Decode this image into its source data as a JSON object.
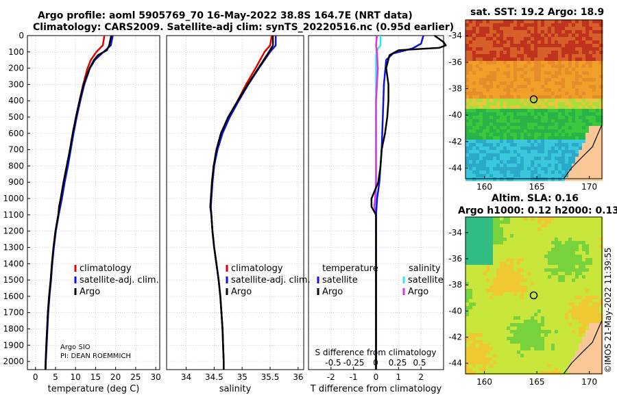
{
  "title": {
    "line1": "Argo profile: aoml 5905769_70 16-May-2022 38.8S 164.7E (NRT data)",
    "line2": "Climatology: CARS2009. Satellite-adj clim: synTS_20220516.nc (0.95d earlier)"
  },
  "map_sst": {
    "title": "sat. SST: 19.2 Argo: 18.9",
    "xticks": [
      "160",
      "165",
      "170"
    ],
    "yticks": [
      "-34",
      "-36",
      "-38",
      "-40",
      "-42",
      "-44"
    ],
    "marker": {
      "lon": 164.7,
      "lat": -38.8
    }
  },
  "map_sla": {
    "title_line1": "Altim. SLA: 0.16",
    "title_line2": "Argo h1000: 0.12 h2000: 0.13",
    "xticks": [
      "160",
      "165",
      "170"
    ],
    "yticks": [
      "-34",
      "-36",
      "-38",
      "-40",
      "-42",
      "-44"
    ],
    "marker": {
      "lon": 164.7,
      "lat": -38.8
    }
  },
  "credit": "©IMOS 21-May-2022 11:39:55",
  "argo_note": {
    "line1": "Argo SIO",
    "line2": "PI: DEAN ROEMMICH"
  },
  "colors": {
    "climatology": "#e00000",
    "satellite": "#1010e0",
    "argo": "#000000",
    "sal_satellite": "#30e8e8",
    "sal_argo": "#e030e0"
  },
  "chart_data": [
    {
      "type": "line",
      "xlabel": "temperature (deg C)",
      "ylabel": "",
      "xlim": [
        -2,
        31
      ],
      "ylim": [
        2050,
        0
      ],
      "xticks": [
        "0",
        "5",
        "10",
        "15",
        "20",
        "25",
        "30"
      ],
      "yticks": [
        "0",
        "100",
        "200",
        "300",
        "400",
        "500",
        "600",
        "700",
        "800",
        "900",
        "1000",
        "1100",
        "1200",
        "1300",
        "1400",
        "1500",
        "1600",
        "1700",
        "1800",
        "1900",
        "2000"
      ],
      "legend": [
        "climatology",
        "satellite-adj. clim.",
        "Argo"
      ],
      "series": [
        {
          "name": "climatology",
          "depth": [
            0,
            60,
            100,
            150,
            200,
            300,
            400,
            500,
            600,
            700,
            800,
            900,
            1000,
            1100,
            1200,
            1300,
            1400,
            1500,
            1600,
            1700,
            1800,
            1900,
            2000,
            2050
          ],
          "values": [
            17.2,
            16.8,
            15.2,
            13.8,
            13.0,
            11.9,
            11.0,
            10.1,
            9.3,
            8.6,
            7.9,
            7.2,
            6.5,
            5.7,
            5.0,
            4.5,
            4.1,
            3.8,
            3.4,
            3.1,
            2.9,
            2.7,
            2.55,
            2.5
          ]
        },
        {
          "name": "satellite-adj. clim.",
          "depth": [
            0,
            60,
            100,
            150,
            200,
            300,
            400,
            500,
            600,
            700,
            800,
            900,
            1000,
            1100,
            1200,
            1300,
            1400,
            1500,
            1600,
            1700,
            1800,
            1900,
            2000,
            2050
          ],
          "values": [
            19.3,
            18.8,
            17.0,
            14.8,
            13.6,
            12.2,
            11.2,
            10.3,
            9.5,
            8.8,
            8.1,
            7.3,
            6.6,
            5.8,
            5.1,
            4.6,
            4.2,
            3.9,
            3.5,
            3.2,
            3.0,
            2.8,
            2.6,
            2.55
          ]
        },
        {
          "name": "Argo",
          "depth": [
            0,
            60,
            90,
            120,
            150,
            200,
            300,
            400,
            500,
            600,
            700,
            800,
            900,
            1000,
            1050,
            1100,
            1200,
            1300,
            1400,
            1500,
            1600,
            1700,
            1800,
            1900,
            2000,
            2050
          ],
          "values": [
            18.9,
            18.4,
            17.8,
            15.6,
            14.6,
            13.5,
            12.0,
            11.0,
            10.1,
            9.3,
            8.6,
            7.8,
            7.0,
            6.3,
            5.9,
            5.7,
            5.0,
            4.5,
            4.1,
            3.8,
            3.4,
            3.1,
            2.9,
            2.7,
            2.55,
            2.5
          ]
        }
      ]
    },
    {
      "type": "line",
      "xlabel": "salinity",
      "xlim": [
        33.65,
        36.1
      ],
      "ylim": [
        2050,
        0
      ],
      "xticks": [
        "34",
        "34.5",
        "35",
        "35.5",
        "36"
      ],
      "legend": [
        "climatology",
        "satellite-adj. clim.",
        "Argo"
      ],
      "series": [
        {
          "name": "climatology",
          "depth": [
            0,
            60,
            100,
            200,
            300,
            400,
            500,
            600,
            700,
            800,
            900,
            1000,
            1050,
            1100,
            1200,
            1300,
            1400,
            1500,
            1600,
            1700,
            1800,
            1900,
            2000,
            2050
          ],
          "values": [
            35.53,
            35.5,
            35.4,
            35.24,
            35.07,
            34.92,
            34.77,
            34.64,
            34.55,
            34.5,
            34.47,
            34.45,
            34.44,
            34.45,
            34.47,
            34.5,
            34.54,
            34.58,
            34.61,
            34.63,
            34.65,
            34.66,
            34.67,
            34.67
          ]
        },
        {
          "name": "satellite-adj. clim.",
          "depth": [
            0,
            60,
            100,
            200,
            300,
            400,
            500,
            600,
            700,
            800,
            900,
            1000,
            1050,
            1100,
            1200,
            1300,
            1400,
            1500,
            1600,
            1700,
            1800,
            1900,
            2000,
            2050
          ],
          "values": [
            35.6,
            35.6,
            35.5,
            35.3,
            35.11,
            34.94,
            34.78,
            34.65,
            34.56,
            34.5,
            34.47,
            34.45,
            34.44,
            34.45,
            34.47,
            34.5,
            34.54,
            34.58,
            34.61,
            34.63,
            34.65,
            34.66,
            34.67,
            34.67
          ]
        },
        {
          "name": "Argo",
          "depth": [
            0,
            60,
            100,
            200,
            300,
            400,
            500,
            600,
            700,
            800,
            900,
            1000,
            1050,
            1100,
            1200,
            1300,
            1400,
            1500,
            1600,
            1700,
            1800,
            1900,
            2000,
            2050
          ],
          "values": [
            35.55,
            35.55,
            35.48,
            35.29,
            35.1,
            34.92,
            34.75,
            34.62,
            34.54,
            34.49,
            34.46,
            34.44,
            34.43,
            34.45,
            34.47,
            34.5,
            34.54,
            34.58,
            34.61,
            34.63,
            34.65,
            34.66,
            34.67,
            34.67
          ]
        }
      ]
    },
    {
      "type": "line",
      "xlabel": "T difference from climatology",
      "xlabel_top": "S difference from climatology",
      "xlim": [
        -3,
        3
      ],
      "ylim": [
        2050,
        0
      ],
      "xticks": [
        "-2",
        "-1",
        "0",
        "1",
        "2"
      ],
      "xticks_top": [
        "-0.5",
        "-0.25",
        "0",
        "0.25",
        "0.5"
      ],
      "legend_left_title": "temperature",
      "legend_right_title": "salinity",
      "legend_left": [
        "satellite",
        "Argo"
      ],
      "legend_right": [
        "satellite",
        "Argo"
      ],
      "series": [
        {
          "name": "T satellite",
          "depth": [
            0,
            50,
            80,
            110,
            150,
            300,
            500,
            700,
            900,
            1000,
            1100,
            1300,
            1500,
            1800,
            2050
          ],
          "values": [
            2.1,
            2.0,
            1.6,
            0.75,
            0.45,
            0.35,
            0.3,
            0.25,
            0.15,
            0.05,
            0,
            0,
            0,
            0,
            0
          ]
        },
        {
          "name": "T Argo",
          "depth": [
            0,
            40,
            60,
            75,
            90,
            120,
            200,
            300,
            400,
            500,
            600,
            700,
            800,
            900,
            1000,
            1050,
            1100,
            1300,
            1500,
            1800,
            2050
          ],
          "values": [
            2.6,
            3.0,
            3.1,
            2.8,
            1.0,
            0.6,
            0.45,
            0.55,
            0.55,
            0.5,
            0.4,
            0.25,
            0.2,
            0.1,
            -0.2,
            -0.2,
            0,
            0,
            0,
            0,
            0
          ]
        },
        {
          "name": "S satellite",
          "depth": [
            0,
            60,
            80,
            120,
            200,
            500,
            900,
            1100,
            1500,
            2050
          ],
          "values": [
            0.05,
            0.05,
            0.02,
            0.0,
            0.0,
            0.0,
            0.0,
            0.0,
            0.0,
            0.0
          ]
        },
        {
          "name": "S Argo",
          "depth": [
            0,
            60,
            100,
            200,
            400,
            600,
            700,
            800,
            900,
            1000,
            1050,
            1100,
            1300,
            1500,
            2050
          ],
          "values": [
            0.01,
            0.0,
            0.01,
            0.02,
            0.0,
            0.0,
            0.0,
            0.0,
            0.0,
            -0.01,
            -0.02,
            0.0,
            0.0,
            0.0,
            0.0
          ]
        }
      ]
    }
  ]
}
